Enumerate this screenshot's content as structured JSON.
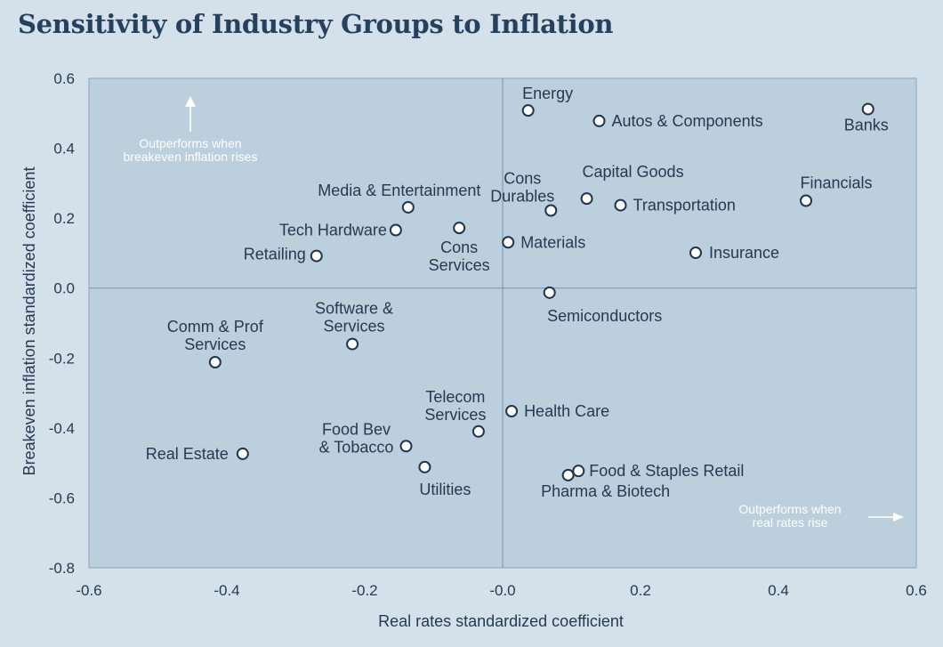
{
  "chart_data": {
    "type": "scatter",
    "title": "Sensitivity of Industry Groups to Inflation",
    "xlabel": "Real rates standardized coefficient",
    "ylabel": "Breakeven inflation standardized coefficient",
    "xlim": [
      -0.6,
      0.6
    ],
    "ylim": [
      -0.8,
      0.6
    ],
    "xticks": [
      "-0.6",
      "-0.4",
      "-0.2",
      "-0.0",
      "0.2",
      "0.4",
      "0.6"
    ],
    "xtick_values": [
      -0.6,
      -0.4,
      -0.2,
      0.0,
      0.2,
      0.4,
      0.6
    ],
    "yticks": [
      "0.6",
      "0.4",
      "0.2",
      "0.0",
      "-0.2",
      "-0.4",
      "-0.6",
      "-0.8"
    ],
    "ytick_values": [
      0.6,
      0.4,
      0.2,
      0.0,
      -0.2,
      -0.4,
      -0.6,
      -0.8
    ],
    "grid": false,
    "colors": {
      "background": "#d5e1ea",
      "plot_area": "#bccfdc",
      "marker_stroke": "#1f3550",
      "marker_fill": "#ffffff",
      "text": "#253a52",
      "annotation": "#ffffff"
    },
    "annotations": [
      {
        "id": "up",
        "text": [
          "Outperforms when",
          "breakeven inflation rises"
        ]
      },
      {
        "id": "right",
        "text": [
          "Outperforms when",
          "real rates rise"
        ]
      }
    ],
    "points": [
      {
        "label": [
          "Energy"
        ],
        "x": 0.037,
        "y": 0.508
      },
      {
        "label": [
          "Autos & Components"
        ],
        "x": 0.14,
        "y": 0.478
      },
      {
        "label": [
          "Banks"
        ],
        "x": 0.53,
        "y": 0.512
      },
      {
        "label": [
          "Cons",
          "Durables"
        ],
        "x": 0.07,
        "y": 0.222
      },
      {
        "label": [
          "Capital Goods"
        ],
        "x": 0.122,
        "y": 0.256
      },
      {
        "label": [
          "Transportation"
        ],
        "x": 0.171,
        "y": 0.237
      },
      {
        "label": [
          "Financials"
        ],
        "x": 0.44,
        "y": 0.25
      },
      {
        "label": [
          "Media & Entertainment"
        ],
        "x": -0.137,
        "y": 0.231
      },
      {
        "label": [
          "Tech Hardware"
        ],
        "x": -0.155,
        "y": 0.166
      },
      {
        "label": [
          "Cons",
          "Services"
        ],
        "x": -0.063,
        "y": 0.172
      },
      {
        "label": [
          "Materials"
        ],
        "x": 0.008,
        "y": 0.131
      },
      {
        "label": [
          "Insurance"
        ],
        "x": 0.28,
        "y": 0.101
      },
      {
        "label": [
          "Retailing"
        ],
        "x": -0.27,
        "y": 0.092
      },
      {
        "label": [
          "Semiconductors"
        ],
        "x": 0.068,
        "y": -0.013
      },
      {
        "label": [
          "Software &",
          "Services"
        ],
        "x": -0.218,
        "y": -0.16
      },
      {
        "label": [
          "Comm & Prof",
          "Services"
        ],
        "x": -0.417,
        "y": -0.212
      },
      {
        "label": [
          "Health Care"
        ],
        "x": 0.013,
        "y": -0.352
      },
      {
        "label": [
          "Telecom",
          "Services"
        ],
        "x": -0.035,
        "y": -0.41
      },
      {
        "label": [
          "Food Bev",
          "& Tobacco"
        ],
        "x": -0.14,
        "y": -0.452
      },
      {
        "label": [
          "Real Estate"
        ],
        "x": -0.377,
        "y": -0.474
      },
      {
        "label": [
          "Utilities"
        ],
        "x": -0.113,
        "y": -0.512
      },
      {
        "label": [
          "Food & Staples Retail"
        ],
        "x": 0.11,
        "y": -0.523
      },
      {
        "label": [
          "Pharma & Biotech"
        ],
        "x": 0.095,
        "y": -0.535
      }
    ]
  }
}
